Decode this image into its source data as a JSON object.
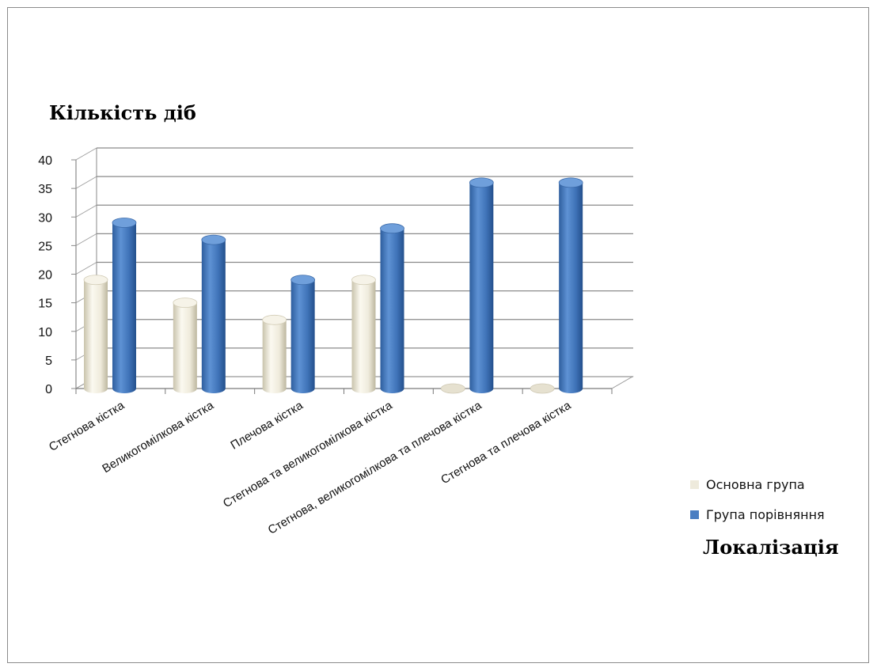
{
  "chart_data": {
    "type": "bar",
    "ylabel": "Кількість діб",
    "xlabel": "Локалізація",
    "categories": [
      "Стегнова кістка",
      "Великогомілкова кістка",
      "Плечова кістка",
      "Стегнова та великогомілкова кістка",
      "Стегнова, великогомілкова та плечова кістка",
      "Стегнова та плечова кістка"
    ],
    "series": [
      {
        "name": "Основна група",
        "color": "#eeeadc",
        "values": [
          19,
          15,
          12,
          19,
          0,
          0
        ]
      },
      {
        "name": "Група порівняння",
        "color": "#4a7ec2",
        "values": [
          29,
          26,
          19,
          28,
          36,
          36
        ]
      }
    ],
    "ylim": [
      0,
      40
    ],
    "yticks": [
      "0",
      "5",
      "10",
      "15",
      "20",
      "25",
      "30",
      "35",
      "40"
    ],
    "grid": true,
    "legend": "right",
    "style": "3d-cylinder"
  }
}
